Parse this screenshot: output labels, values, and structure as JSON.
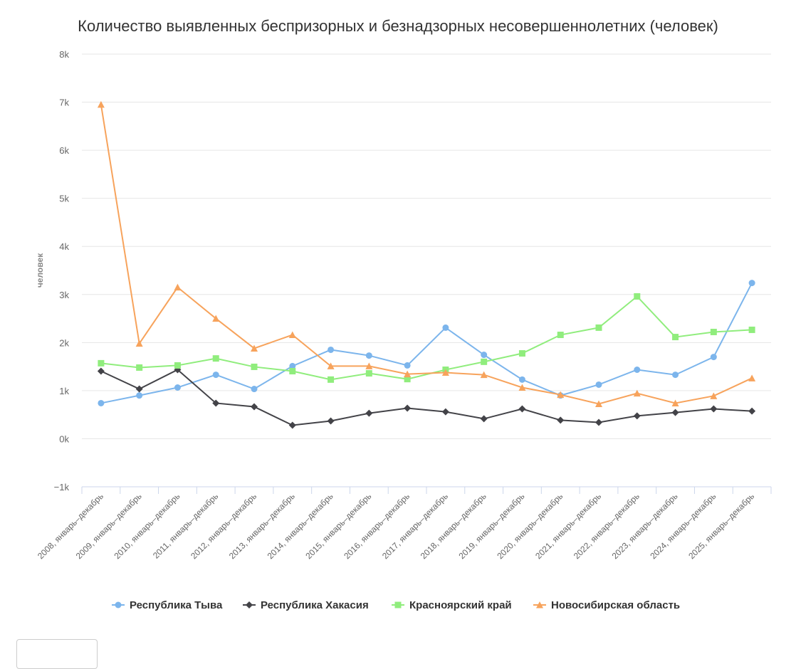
{
  "chart_data": {
    "type": "line",
    "title": "Количество выявленных беспризорных и безнадзорных несовершеннолетних (человек)",
    "xlabel": "",
    "ylabel": "человек",
    "ylim": [
      -1000,
      8000
    ],
    "yticks": [
      -1000,
      0,
      1000,
      2000,
      3000,
      4000,
      5000,
      6000,
      7000,
      8000
    ],
    "ytick_labels": [
      "−1k",
      "0k",
      "1k",
      "2k",
      "3k",
      "4k",
      "5k",
      "6k",
      "7k",
      "8k"
    ],
    "grid": true,
    "legend_position": "bottom",
    "categories": [
      "2008, январь–декабрь",
      "2009, январь–декабрь",
      "2010, январь–декабрь",
      "2011, январь–декабрь",
      "2012, январь–декабрь",
      "2013, январь–декабрь",
      "2014, январь–декабрь",
      "2015, январь–декабрь",
      "2016, январь–декабрь",
      "2017, январь–декабрь",
      "2018, январь–декабрь",
      "2019, январь–декабрь",
      "2020, январь–декабрь",
      "2021, январь–декабрь",
      "2022, январь–декабрь",
      "2023, январь–декабрь",
      "2024, январь–декабрь",
      "2025, январь–декабрь"
    ],
    "series": [
      {
        "name": "Республика Тыва",
        "color": "#7cb5ec",
        "marker": "circle",
        "values": [
          740,
          900,
          1065,
          1330,
          1035,
          1510,
          1850,
          1730,
          1525,
          2310,
          1745,
          1230,
          900,
          1125,
          1435,
          1330,
          1700,
          3240
        ]
      },
      {
        "name": "Республика Хакасия",
        "color": "#434348",
        "marker": "diamond",
        "values": [
          1405,
          1035,
          1435,
          740,
          665,
          280,
          370,
          530,
          635,
          560,
          415,
          620,
          385,
          340,
          475,
          545,
          620,
          575
        ]
      },
      {
        "name": "Красноярский край",
        "color": "#90ed7d",
        "marker": "square",
        "values": [
          1570,
          1480,
          1525,
          1670,
          1495,
          1405,
          1230,
          1360,
          1240,
          1435,
          1600,
          1775,
          2160,
          2310,
          2960,
          2115,
          2220,
          2265
        ]
      },
      {
        "name": "Новосибирская область",
        "color": "#f7a35c",
        "marker": "triangle",
        "values": [
          6950,
          1980,
          3150,
          2500,
          1880,
          2160,
          1510,
          1510,
          1345,
          1375,
          1330,
          1065,
          915,
          725,
          945,
          740,
          890,
          1260
        ]
      }
    ]
  }
}
